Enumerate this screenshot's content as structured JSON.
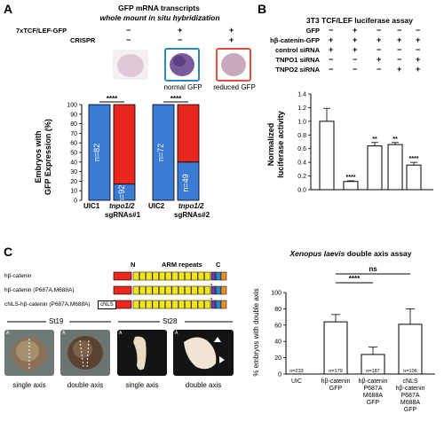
{
  "panelA": {
    "letter": "A",
    "title1": "GFP mRNA transcripts",
    "title2": "whole mount in situ hybridization",
    "row1_label": "7xTCF/LEF-GFP",
    "row1_vals": [
      "−",
      "+",
      "+"
    ],
    "row2_label": "CRISPR",
    "row2_vals": [
      "−",
      "−",
      "+"
    ],
    "photo_label_normal": "normal GFP",
    "photo_label_reduced": "reduced GFP",
    "ylabel_line1": "Embryos with",
    "ylabel_line2": "GFP Expression (%)",
    "sig1": "****",
    "sig2": "****",
    "group1": "sgRNAs#1",
    "group2": "sgRNAs#2"
  },
  "panelB": {
    "letter": "B",
    "title": "3T3 TCF/LEF luciferase assay",
    "rows": [
      {
        "label": "GFP",
        "vals": [
          "−",
          "+",
          "−",
          "−",
          "−"
        ]
      },
      {
        "label": "hβ-catenin-GFP",
        "vals": [
          "+",
          "+",
          "+",
          "+",
          "+"
        ]
      },
      {
        "label": "control siRNA",
        "vals": [
          "+",
          "+",
          "−",
          "−",
          "−"
        ]
      },
      {
        "label": "TNPO1 siRNA",
        "vals": [
          "−",
          "−",
          "+",
          "−",
          "+"
        ]
      },
      {
        "label": "TNPO2 siRNA",
        "vals": [
          "−",
          "−",
          "−",
          "+",
          "+"
        ]
      }
    ],
    "ylabel_line1": "Normalized",
    "ylabel_line2": "luciferase activity"
  },
  "panelC": {
    "letter": "C",
    "constructs": [
      {
        "label": "hβ-catenin"
      },
      {
        "label": "hβ-catenin (P687A,M688A)"
      },
      {
        "label": "cNLS-hβ-catenin (P687A,M688A)"
      }
    ],
    "domain_N": "N",
    "domain_ARM": "ARM repeats",
    "domain_C": "C",
    "cnls_tag": "cNLS",
    "stage1": "St19",
    "stage2": "St28",
    "photo_captions": [
      "single axis",
      "double axis",
      "single axis",
      "double axis"
    ],
    "photo_corner_letters": [
      "A",
      "A",
      "A",
      "A"
    ]
  },
  "panelD": {
    "title_species": "Xenopus laevis",
    "title_rest": " double axis assay",
    "ylabel": "% embryos with double axis",
    "sig_ns": "ns",
    "sig_stars": "****"
  },
  "chart_data": [
    {
      "type": "bar",
      "stacked": true,
      "categories": [
        "UIC1",
        "tnpo1/2",
        "UIC2",
        "tnpo1/2"
      ],
      "series": [
        {
          "name": "",
          "color": "#3a7bd5",
          "values": [
            100,
            17,
            100,
            40
          ]
        },
        {
          "name": "",
          "color": "#e8281e",
          "values": [
            0,
            83,
            0,
            60
          ]
        }
      ],
      "n_labels": [
        "n=82",
        "n=92",
        "n=72",
        "n=49"
      ],
      "ylim": [
        0,
        100
      ],
      "yticks": [
        "0",
        "10",
        "20",
        "30",
        "40",
        "50",
        "60",
        "70",
        "80",
        "90",
        "100"
      ]
    },
    {
      "type": "bar",
      "values": [
        1.0,
        0.12,
        0.64,
        0.66,
        0.36
      ],
      "errors": [
        0.19,
        0.01,
        0.05,
        0.03,
        0.04
      ],
      "sig": [
        "",
        "****",
        "**",
        "**",
        "****"
      ],
      "ylim": [
        0,
        1.4
      ],
      "yticks": [
        "0.0",
        "0.2",
        "0.4",
        "0.6",
        "0.8",
        "1.0",
        "1.2",
        "1.4"
      ]
    },
    {
      "type": "bar",
      "categories": [
        "UIC",
        "hβ-catenin GFP",
        "hβ-catenin P687A M688A GFP",
        "cNLS hβ-catenin P687A M688A GFP"
      ],
      "category_lines": [
        [
          "UIC"
        ],
        [
          "hβ-catenin",
          "GFP"
        ],
        [
          "hβ-catenin",
          "P687A",
          "M688A",
          "GFP"
        ],
        [
          "cNLS",
          "hβ-catenin",
          "P687A",
          "M688A",
          "GFP"
        ]
      ],
      "values": [
        0,
        64,
        24,
        61
      ],
      "errors": [
        0,
        9,
        9,
        19
      ],
      "n_labels": [
        "n=233",
        "n=179",
        "n=187",
        "n=106"
      ],
      "ylim": [
        0,
        100
      ],
      "yticks": [
        "0",
        "20",
        "40",
        "60",
        "80",
        "100"
      ]
    }
  ]
}
